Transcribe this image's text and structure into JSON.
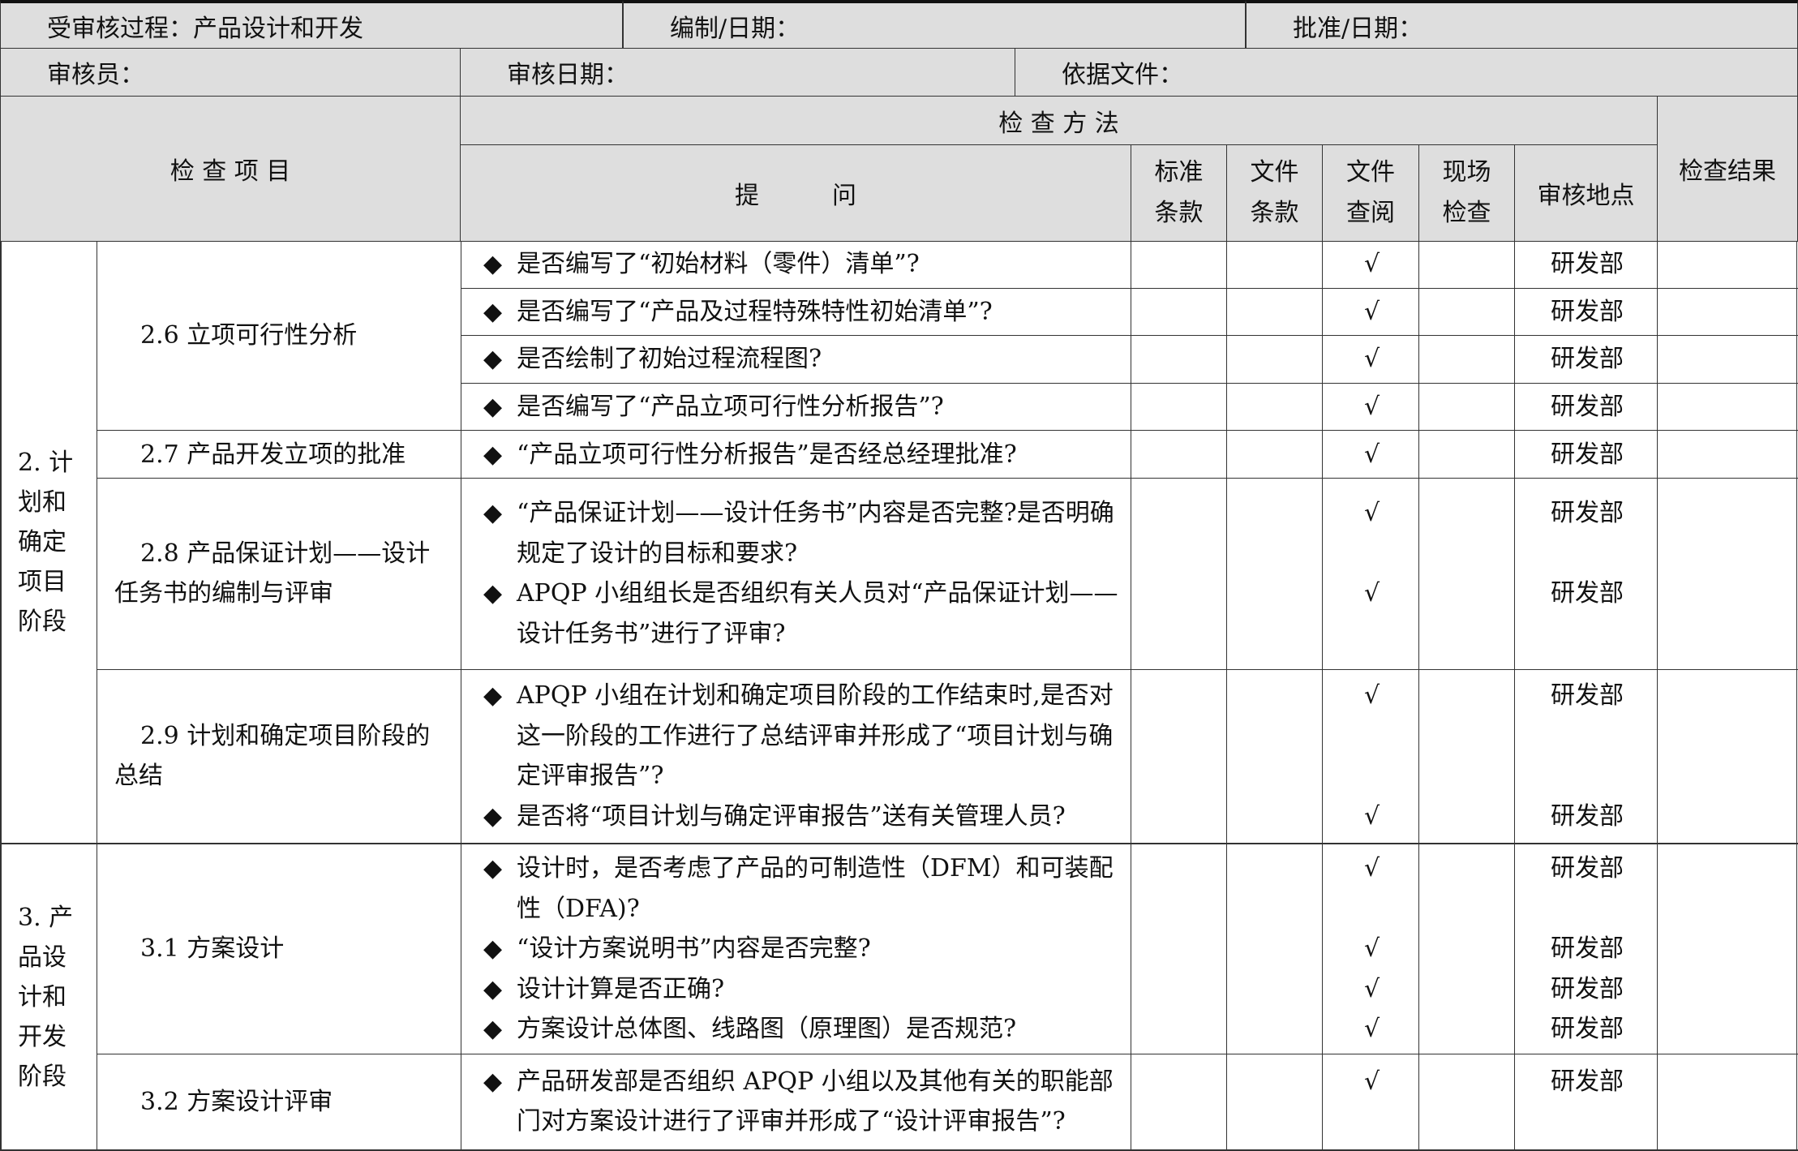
{
  "header": {
    "process": "受审核过程：产品设计和开发",
    "compiled": "编制/日期：",
    "approved": "批准/日期：",
    "auditor": "审核员：",
    "audit_date": "审核日期：",
    "basis": "依据文件："
  },
  "columns": {
    "item": "检 查 项 目",
    "method": "检 查 方 法",
    "question": "提　　　问",
    "standard": [
      "标准",
      "条款"
    ],
    "document": [
      "文件",
      "条款"
    ],
    "review": [
      "文件",
      "查阅"
    ],
    "onsite": [
      "现场",
      "检查"
    ],
    "location": "审核地点",
    "result": "检查结果"
  },
  "groups": [
    {
      "label": "2. 计划和确定项目阶段",
      "subs": [
        {
          "title": "2.6 立项可行性分析",
          "divided": true,
          "items": [
            {
              "q": "是否编写了“初始材料（零件）清单”?",
              "check": "√",
              "loc": "研发部"
            },
            {
              "q": "是否编写了“产品及过程特殊特性初始清单”?",
              "check": "√",
              "loc": "研发部"
            },
            {
              "q": "是否绘制了初始过程流程图?",
              "check": "√",
              "loc": "研发部"
            },
            {
              "q": "是否编写了“产品立项可行性分析报告”?",
              "check": "√",
              "loc": "研发部"
            }
          ]
        },
        {
          "title": "2.7 产品开发立项的批准",
          "items": [
            {
              "q": "“产品立项可行性分析报告”是否经总经理批准?",
              "check": "√",
              "loc": "研发部"
            }
          ]
        },
        {
          "title": "2.8 产品保证计划——设计任务书的编制与评审",
          "items": [
            {
              "q": "“产品保证计划——设计任务书”内容是否完整?是否明确规定了设计的目标和要求?",
              "check": "√",
              "loc": "研发部"
            },
            {
              "q": "APQP 小组组长是否组织有关人员对“产品保证计划——设计任务书”进行了评审?",
              "check": "√",
              "loc": "研发部"
            }
          ]
        },
        {
          "title": "2.9 计划和确定项目阶段的总结",
          "items": [
            {
              "q": "APQP 小组在计划和确定项目阶段的工作结束时,是否对这一阶段的工作进行了总结评审并形成了“项目计划与确定评审报告”?",
              "check": "√",
              "loc": "研发部"
            },
            {
              "q": "是否将“项目计划与确定评审报告”送有关管理人员?",
              "check": "√",
              "loc": "研发部"
            }
          ]
        }
      ]
    },
    {
      "label": "3. 产品设计和开发阶段",
      "subs": [
        {
          "title": "3.1 方案设计",
          "items": [
            {
              "q": "设计时，是否考虑了产品的可制造性（DFM）和可装配性（DFA)?",
              "check": "√",
              "loc": "研发部"
            },
            {
              "q": "“设计方案说明书”内容是否完整?",
              "check": "√",
              "loc": "研发部"
            },
            {
              "q": "设计计算是否正确?",
              "check": "√",
              "loc": "研发部"
            },
            {
              "q": "方案设计总体图、线路图（原理图）是否规范?",
              "check": "√",
              "loc": "研发部"
            }
          ]
        },
        {
          "title": "3.2 方案设计评审",
          "items": [
            {
              "q": "产品研发部是否组织 APQP 小组以及其他有关的职能部门对方案设计进行了评审并形成了“设计评审报告”?",
              "check": "√",
              "loc": "研发部"
            }
          ]
        }
      ]
    }
  ],
  "bullet_icon": "◆"
}
